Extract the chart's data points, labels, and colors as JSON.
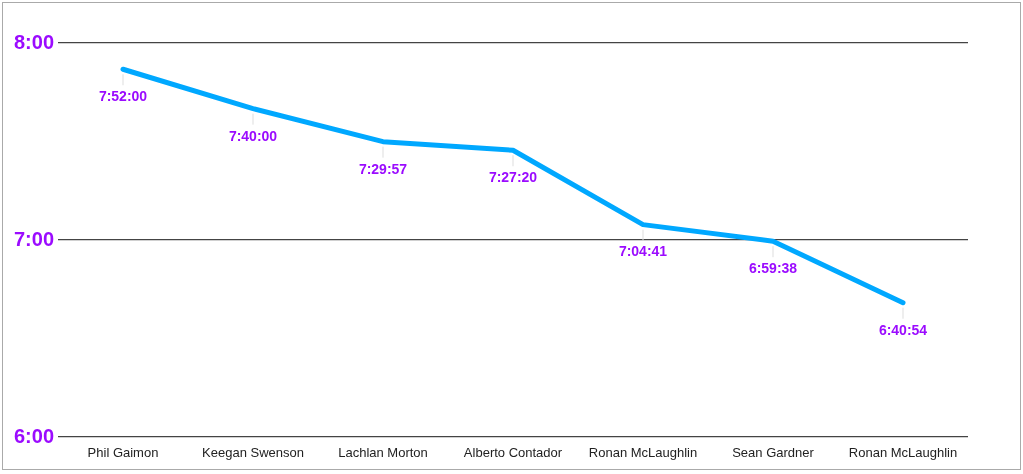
{
  "chart_data": {
    "type": "line",
    "categories": [
      "Phil Gaimon",
      "Keegan Swenson",
      "Lachlan Morton",
      "Alberto Contador",
      "Ronan McLaughlin",
      "Sean Gardner",
      "Ronan McLaughlin"
    ],
    "values": [
      7.86667,
      7.66667,
      7.49917,
      7.45556,
      7.07806,
      6.99389,
      6.68167
    ],
    "value_labels": [
      "7:52:00",
      "7:40:00",
      "7:29:57",
      "7:27:20",
      "7:04:41",
      "6:59:38",
      "6:40:54"
    ],
    "color": "#00a8ff",
    "ylim": [
      6,
      8
    ],
    "yticks": [
      {
        "value": 6,
        "label": "6:00"
      },
      {
        "value": 7,
        "label": "7:00"
      },
      {
        "value": 8,
        "label": "8:00"
      }
    ],
    "grid": "y",
    "marker": "none"
  }
}
